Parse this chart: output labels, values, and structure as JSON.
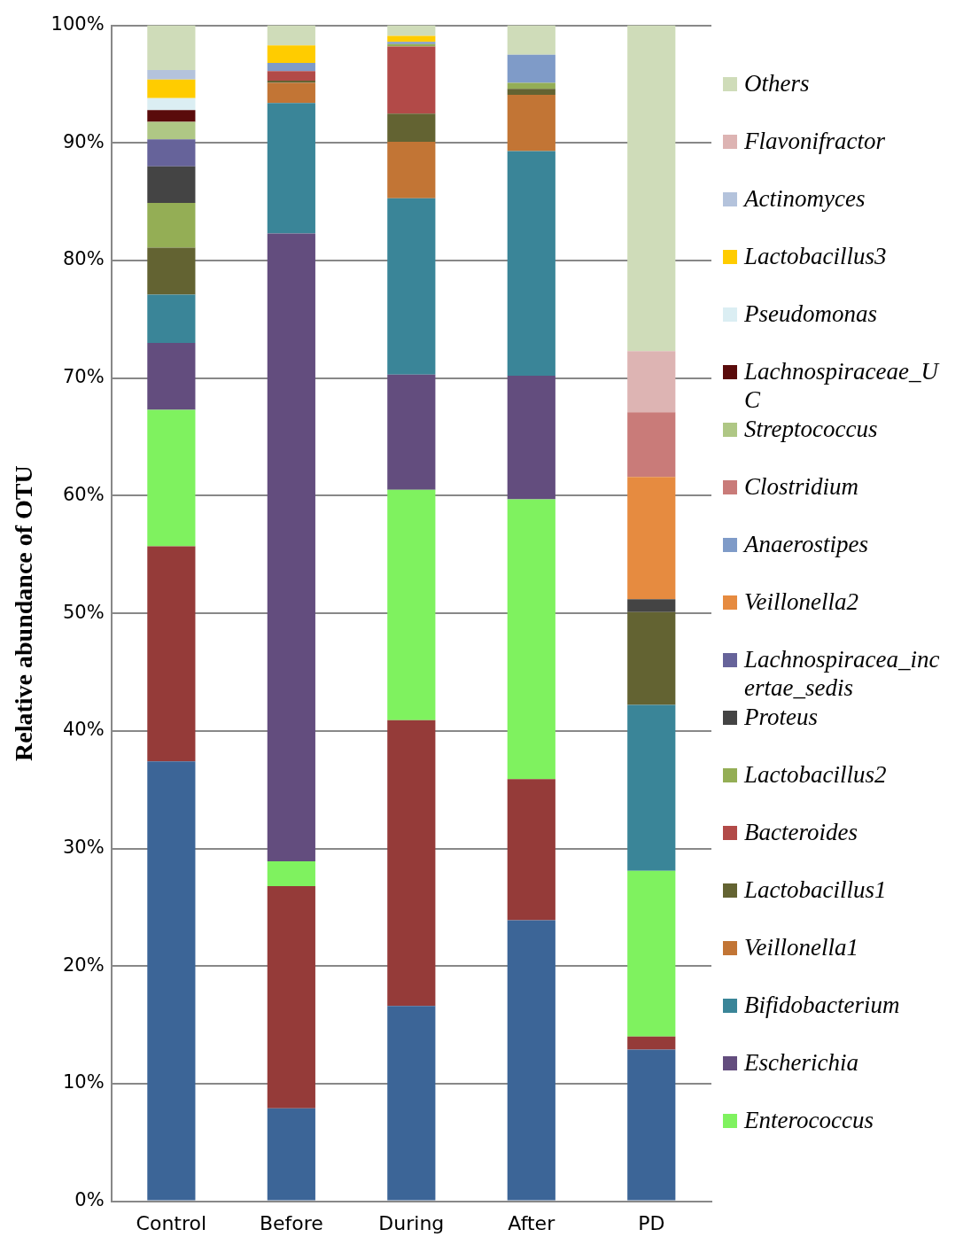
{
  "chart_data": {
    "type": "bar",
    "stacked": true,
    "ylabel": "Relative abundance of OTU",
    "categories": [
      "Control",
      "Before",
      "During",
      "After",
      "PD"
    ],
    "ylim": [
      0,
      100
    ],
    "yticks": [
      {
        "value": 0,
        "label": "0%"
      },
      {
        "value": 10,
        "label": "10%"
      },
      {
        "value": 20,
        "label": "20%"
      },
      {
        "value": 30,
        "label": "30%"
      },
      {
        "value": 40,
        "label": "40%"
      },
      {
        "value": 50,
        "label": "50%"
      },
      {
        "value": 60,
        "label": "60%"
      },
      {
        "value": 70,
        "label": "70%"
      },
      {
        "value": 80,
        "label": "80%"
      },
      {
        "value": 90,
        "label": "90%"
      },
      {
        "value": 100,
        "label": "100%"
      }
    ],
    "grid": "y",
    "legend": "right",
    "series": [
      {
        "color": "#3c6597",
        "values": [
          37.4,
          7.9,
          16.6,
          23.9,
          12.9
        ]
      },
      {
        "color": "#953b39",
        "values": [
          18.3,
          18.9,
          24.3,
          12.0,
          1.1
        ]
      },
      {
        "name": "Enterococcus",
        "color": "#7ff25f",
        "values": [
          11.6,
          2.1,
          19.6,
          23.8,
          14.1
        ]
      },
      {
        "name": "Escherichia",
        "color": "#634d7e",
        "values": [
          5.7,
          53.4,
          9.8,
          10.5,
          null
        ]
      },
      {
        "name": "Bifidobacterium",
        "color": "#3a8598",
        "values": [
          4.1,
          11.1,
          15.0,
          19.1,
          14.1
        ]
      },
      {
        "name": "Veillonella1",
        "color": "#c27535",
        "values": [
          null,
          1.7,
          4.8,
          4.8,
          null
        ]
      },
      {
        "name": "Lactobacillus1",
        "color": "#636332",
        "values": [
          4.0,
          0.2,
          2.4,
          0.5,
          7.9
        ]
      },
      {
        "name": "Bacteroides",
        "color": "#b24a48",
        "values": [
          null,
          0.8,
          5.7,
          null,
          null
        ]
      },
      {
        "name": "Lactobacillus2",
        "color": "#94ae55",
        "values": [
          3.8,
          null,
          0.2,
          0.5,
          null
        ]
      },
      {
        "name": "Proteus",
        "color": "#444444",
        "values": [
          3.1,
          null,
          null,
          null,
          1.1
        ]
      },
      {
        "name": "Lachnospiracea_incertae_sedis",
        "color": "#66639a",
        "values": [
          2.3,
          null,
          null,
          null,
          null
        ]
      },
      {
        "name": "Veillonella2",
        "color": "#e68b40",
        "values": [
          null,
          null,
          null,
          null,
          10.4
        ]
      },
      {
        "name": "Anaerostipes",
        "color": "#7f9bc8",
        "values": [
          null,
          0.7,
          0.2,
          2.4,
          null
        ]
      },
      {
        "name": "Clostridium",
        "color": "#c97b79",
        "values": [
          null,
          null,
          null,
          null,
          5.5
        ]
      },
      {
        "name": "Streptococcus",
        "color": "#afc785",
        "values": [
          1.5,
          null,
          null,
          null,
          null
        ]
      },
      {
        "name": "Lachnospiraceae_UC",
        "color": "#5a0b0b",
        "values": [
          1.0,
          null,
          null,
          null,
          null
        ]
      },
      {
        "name": "Pseudomonas",
        "color": "#dbeef3",
        "values": [
          1.0,
          null,
          null,
          null,
          null
        ]
      },
      {
        "name": "Lactobacillus3",
        "color": "#ffcc00",
        "values": [
          1.6,
          1.5,
          0.5,
          null,
          null
        ]
      },
      {
        "name": "Actinomyces",
        "color": "#b4c3dc",
        "values": [
          0.8,
          null,
          null,
          null,
          null
        ]
      },
      {
        "name": "Flavonifractor",
        "color": "#ddb4b3",
        "values": [
          null,
          null,
          null,
          null,
          5.2
        ]
      },
      {
        "name": "Others",
        "color": "#cfdcb9",
        "values": [
          3.8,
          1.7,
          0.9,
          2.5,
          27.7
        ]
      }
    ]
  }
}
